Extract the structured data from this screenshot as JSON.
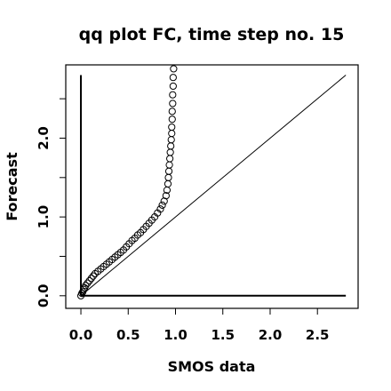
{
  "chart_data": {
    "type": "scatter",
    "title": "qq plot FC, time step no. 15",
    "xlabel": "SMOS data",
    "ylabel": "Forecast",
    "xlim": [
      -0.16,
      2.93
    ],
    "ylim": [
      -0.16,
      2.93
    ],
    "x_ticks": [
      {
        "value": 0.0,
        "label": "0.0"
      },
      {
        "value": 0.5,
        "label": "0.5"
      },
      {
        "value": 1.0,
        "label": "1.0"
      },
      {
        "value": 1.5,
        "label": "1.5"
      },
      {
        "value": 2.0,
        "label": "2.0"
      },
      {
        "value": 2.5,
        "label": "2.5"
      }
    ],
    "y_ticks": [
      {
        "value": 0.0,
        "label": "0.0"
      },
      {
        "value": 0.5,
        "label": ""
      },
      {
        "value": 1.0,
        "label": "1.0"
      },
      {
        "value": 1.5,
        "label": ""
      },
      {
        "value": 2.0,
        "label": "2.0"
      },
      {
        "value": 2.5,
        "label": ""
      }
    ],
    "grid": false,
    "legend": "none",
    "reference_lines": [
      {
        "kind": "identity",
        "x": [
          0.0,
          2.8
        ],
        "y": [
          0.0,
          2.8
        ]
      },
      {
        "kind": "horizontal",
        "x": [
          0.0,
          2.8
        ],
        "y": [
          0.0,
          0.0
        ]
      },
      {
        "kind": "vertical",
        "x": [
          0.0,
          0.0
        ],
        "y": [
          0.0,
          2.8
        ]
      }
    ],
    "series": [
      {
        "points": [
          [
            0.0,
            0.0
          ],
          [
            0.01,
            0.03
          ],
          [
            0.02,
            0.05
          ],
          [
            0.03,
            0.08
          ],
          [
            0.04,
            0.1
          ],
          [
            0.05,
            0.13
          ],
          [
            0.07,
            0.16
          ],
          [
            0.09,
            0.19
          ],
          [
            0.11,
            0.22
          ],
          [
            0.13,
            0.25
          ],
          [
            0.15,
            0.28
          ],
          [
            0.18,
            0.31
          ],
          [
            0.21,
            0.34
          ],
          [
            0.24,
            0.37
          ],
          [
            0.27,
            0.4
          ],
          [
            0.3,
            0.43
          ],
          [
            0.33,
            0.46
          ],
          [
            0.36,
            0.49
          ],
          [
            0.39,
            0.52
          ],
          [
            0.42,
            0.55
          ],
          [
            0.45,
            0.58
          ],
          [
            0.48,
            0.62
          ],
          [
            0.51,
            0.66
          ],
          [
            0.54,
            0.7
          ],
          [
            0.57,
            0.73
          ],
          [
            0.6,
            0.77
          ],
          [
            0.63,
            0.8
          ],
          [
            0.66,
            0.84
          ],
          [
            0.69,
            0.88
          ],
          [
            0.72,
            0.92
          ],
          [
            0.75,
            0.96
          ],
          [
            0.78,
            1.0
          ],
          [
            0.81,
            1.05
          ],
          [
            0.84,
            1.1
          ],
          [
            0.86,
            1.15
          ],
          [
            0.88,
            1.2
          ],
          [
            0.9,
            1.27
          ],
          [
            0.91,
            1.34
          ],
          [
            0.92,
            1.42
          ],
          [
            0.925,
            1.5
          ],
          [
            0.93,
            1.58
          ],
          [
            0.935,
            1.66
          ],
          [
            0.94,
            1.74
          ],
          [
            0.945,
            1.82
          ],
          [
            0.95,
            1.9
          ],
          [
            0.955,
            1.98
          ],
          [
            0.96,
            2.06
          ],
          [
            0.96,
            2.14
          ],
          [
            0.965,
            2.24
          ],
          [
            0.965,
            2.34
          ],
          [
            0.97,
            2.44
          ],
          [
            0.97,
            2.55
          ],
          [
            0.975,
            2.66
          ],
          [
            0.975,
            2.77
          ],
          [
            0.98,
            2.88
          ]
        ]
      }
    ]
  }
}
